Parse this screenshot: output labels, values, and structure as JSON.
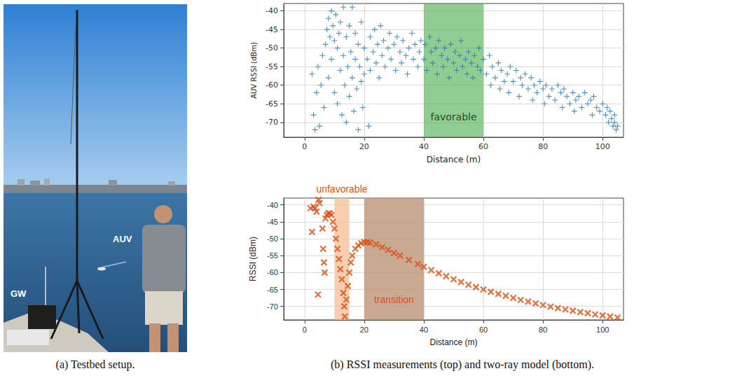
{
  "photo": {
    "texts": {
      "gw": "GW",
      "auv": "AUV"
    },
    "caption": "(a) Testbed setup."
  },
  "caption": "(b) RSSI measurements (top) and two-ray model (bottom).",
  "chart_data": [
    {
      "type": "scatter",
      "x_label": "Distance (m)",
      "y_label": "AUV RSSI (dBm)",
      "color": "#1f77b4",
      "marker": "plus",
      "grid": true,
      "xlim": [
        -7,
        107
      ],
      "xticks": [
        0,
        20,
        40,
        60,
        80,
        100
      ],
      "ylim": [
        -74,
        -38
      ],
      "yticks": [
        -70,
        -65,
        -60,
        -55,
        -50,
        -45,
        -40
      ],
      "bands": [
        {
          "label": "favorable",
          "range": [
            40,
            60
          ],
          "color": "#4caf50"
        }
      ],
      "x": [
        2.5,
        3,
        3.5,
        4,
        4.5,
        5,
        5.5,
        6,
        6.5,
        7,
        7.5,
        8,
        8,
        8.5,
        9,
        9,
        9.5,
        10,
        10,
        10.5,
        11,
        11,
        11.5,
        12,
        12,
        12.5,
        13,
        13,
        13.5,
        14,
        14,
        14.5,
        15,
        15,
        15.5,
        16,
        16,
        16.5,
        17,
        17,
        17.5,
        18,
        18,
        18.5,
        19,
        19,
        19.5,
        20,
        20,
        21,
        21.5,
        22,
        22,
        23,
        23.5,
        24,
        24.5,
        25,
        25.5,
        26,
        26.5,
        27,
        28,
        28.5,
        29,
        30,
        30.5,
        31,
        32,
        32.5,
        33,
        34,
        34.5,
        35,
        36,
        36.5,
        37,
        38,
        38.5,
        39,
        40,
        40.5,
        41,
        42,
        42.5,
        43,
        44,
        44.5,
        45,
        46,
        46.5,
        47,
        48,
        48.5,
        49,
        50,
        50.5,
        51,
        52,
        52.5,
        53,
        54,
        54.5,
        55,
        56,
        56.5,
        57,
        58,
        58.5,
        59,
        60,
        61,
        62,
        62.5,
        63,
        64,
        65,
        65.5,
        66,
        67,
        68,
        68.5,
        69,
        70,
        71,
        72,
        72.5,
        73,
        74,
        75,
        76,
        76.5,
        77,
        78,
        79,
        80,
        80.5,
        81,
        82,
        83,
        84,
        85,
        86,
        86.5,
        87,
        88,
        89,
        90,
        90.5,
        91,
        92,
        93,
        94,
        95,
        96,
        96.5,
        97,
        98,
        99,
        100,
        101,
        101.5,
        102,
        102.5,
        103,
        103.5,
        104,
        104,
        104.5,
        105
      ],
      "values": [
        -57,
        -68,
        -72,
        -62,
        -55,
        -71,
        -60,
        -52,
        -66,
        -49,
        -45,
        -42,
        -58,
        -47,
        -40,
        -53,
        -44,
        -48,
        -62,
        -41,
        -50,
        -65,
        -46,
        -43,
        -56,
        -68,
        -52,
        -39,
        -60,
        -47,
        -70,
        -55,
        -44,
        -63,
        -51,
        -39,
        -58,
        -67,
        -46,
        -53,
        -61,
        -49,
        -72,
        -55,
        -43,
        -59,
        -66,
        -50,
        -57,
        -53,
        -71,
        -47,
        -56,
        -51,
        -45,
        -54,
        -49,
        -58,
        -44,
        -52,
        -48,
        -55,
        -50,
        -46,
        -53,
        -49,
        -56,
        -47,
        -51,
        -54,
        -48,
        -52,
        -57,
        -50,
        -46,
        -53,
        -49,
        -55,
        -51,
        -48,
        -53,
        -49,
        -56,
        -47,
        -51,
        -54,
        -50,
        -57,
        -48,
        -52,
        -55,
        -50,
        -53,
        -58,
        -49,
        -54,
        -51,
        -56,
        -52,
        -48,
        -55,
        -53,
        -57,
        -51,
        -54,
        -58,
        -52,
        -55,
        -50,
        -56,
        -53,
        -57,
        -52,
        -60,
        -55,
        -58,
        -54,
        -61,
        -56,
        -59,
        -57,
        -62,
        -55,
        -59,
        -56,
        -63,
        -58,
        -60,
        -57,
        -61,
        -58,
        -64,
        -60,
        -62,
        -59,
        -61,
        -65,
        -60,
        -63,
        -61,
        -64,
        -60,
        -62,
        -66,
        -61,
        -63,
        -65,
        -62,
        -67,
        -64,
        -63,
        -66,
        -62,
        -65,
        -64,
        -68,
        -63,
        -66,
        -67,
        -65,
        -68,
        -66,
        -70,
        -67,
        -69,
        -71,
        -68,
        -70,
        -72,
        -71
      ]
    },
    {
      "type": "scatter",
      "x_label": "Distance (m)",
      "y_label": "RSSI (dBm)",
      "color": "#d95319",
      "marker": "x",
      "grid": true,
      "xlim": [
        -7,
        107
      ],
      "xticks": [
        0,
        20,
        40,
        60,
        80,
        100
      ],
      "ylim": [
        -74,
        -38
      ],
      "yticks": [
        -70,
        -65,
        -60,
        -55,
        -50,
        -45,
        -40
      ],
      "bands": [
        {
          "label": "unfavorable",
          "range": [
            10,
            15
          ],
          "color": "#f7c6a3"
        },
        {
          "label": "transition",
          "range": [
            20,
            40
          ],
          "color": "#c19a80"
        }
      ],
      "x": [
        2,
        2.5,
        3,
        3.5,
        4,
        4.5,
        4.7,
        5,
        6,
        6.2,
        6.5,
        6.7,
        7,
        7.5,
        8,
        8.5,
        9,
        9.5,
        10,
        10.5,
        11,
        11.5,
        12,
        12.5,
        13,
        13.3,
        13.5,
        14,
        14.5,
        15,
        15.5,
        16,
        17,
        18,
        19,
        20,
        21,
        22,
        24,
        26,
        28,
        30,
        32,
        35,
        38,
        40,
        42.5,
        45,
        47.5,
        50,
        52.5,
        55,
        57.5,
        60,
        62.5,
        65,
        67.5,
        70,
        72.5,
        75,
        77.5,
        80,
        82.5,
        85,
        87.5,
        90,
        92.5,
        95,
        97.5,
        100,
        102.5,
        105
      ],
      "values": [
        -41,
        -48,
        -40.5,
        -41,
        -42,
        -66.5,
        -38.5,
        -39.5,
        -47,
        -53,
        -57,
        -60,
        -44,
        -43,
        -42.5,
        -42.5,
        -43,
        -45,
        -47,
        -50,
        -53,
        -56,
        -59,
        -62,
        -66,
        -70,
        -73,
        -68,
        -64,
        -60,
        -57,
        -55,
        -53,
        -52,
        -51.3,
        -51,
        -51,
        -51.2,
        -51.7,
        -52.5,
        -53.3,
        -54.2,
        -55,
        -56.3,
        -57.5,
        -58.3,
        -59.3,
        -60.2,
        -61.1,
        -62,
        -62.8,
        -63.6,
        -64.3,
        -65,
        -65.7,
        -66.3,
        -66.9,
        -67.5,
        -68.1,
        -68.6,
        -69.1,
        -69.6,
        -70.1,
        -70.5,
        -70.9,
        -71.3,
        -71.7,
        -72,
        -72.4,
        -72.7,
        -73,
        -73.3
      ]
    }
  ]
}
